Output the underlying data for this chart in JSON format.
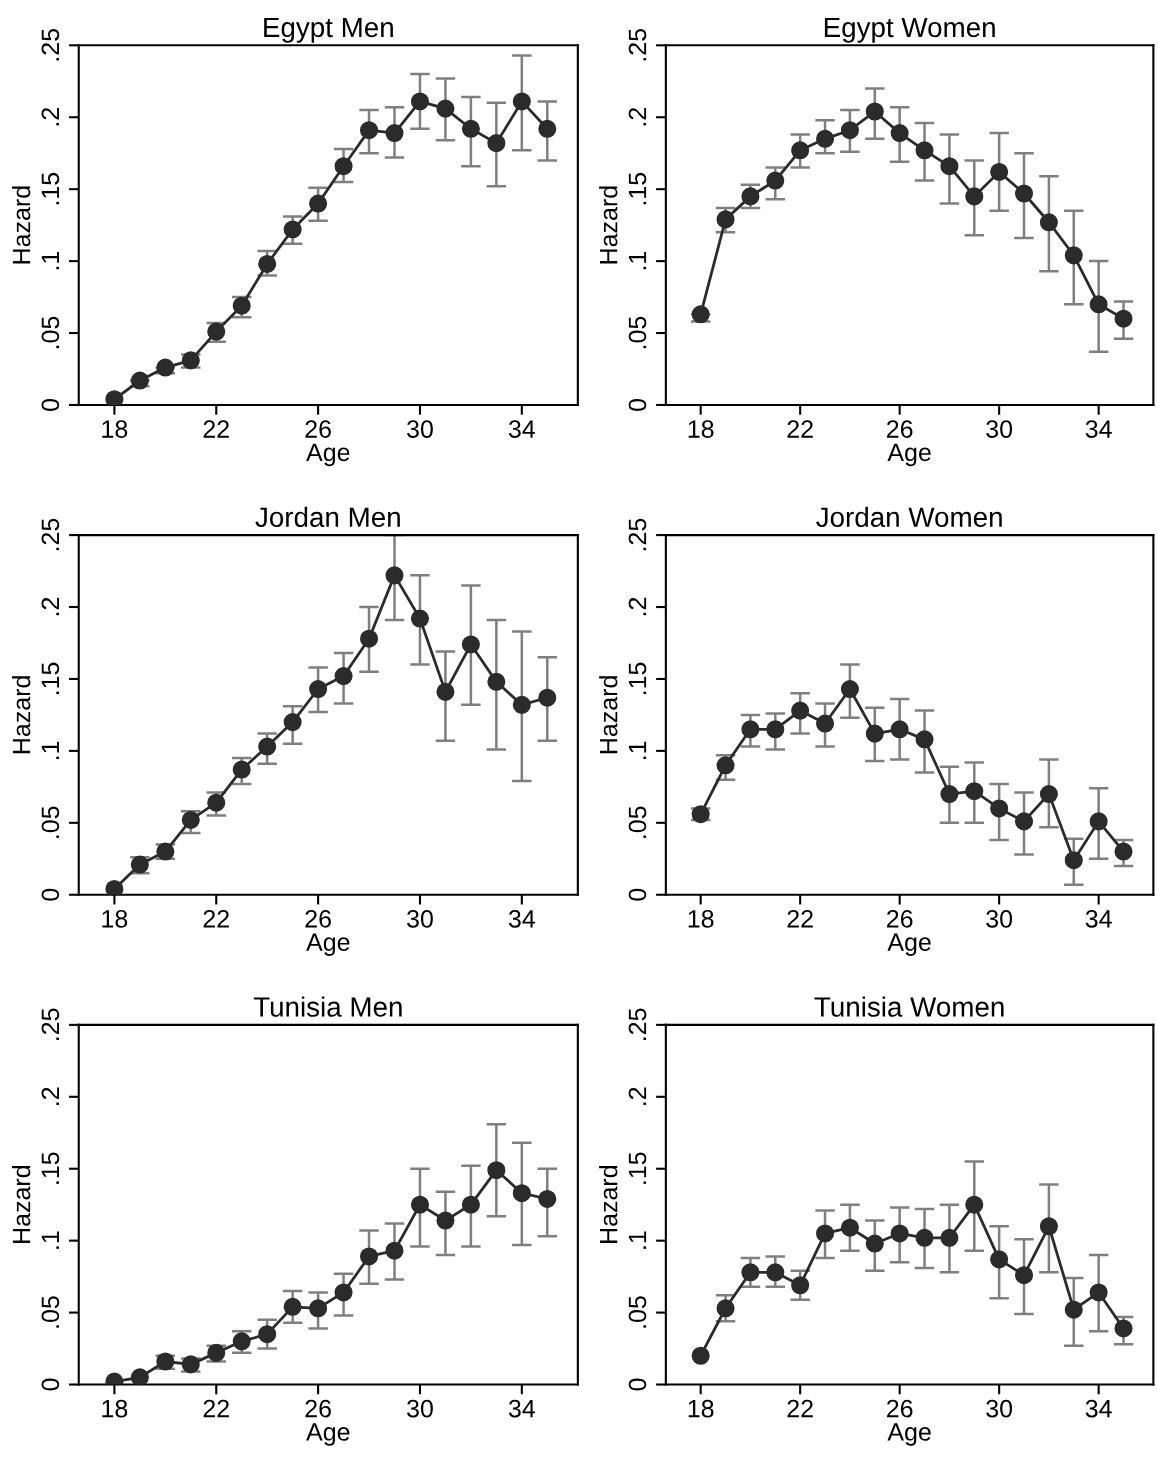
{
  "chart_data": [
    {
      "type": "line",
      "title": "Egypt Men",
      "xlabel": "Age",
      "ylabel": "Hazard",
      "marker": "circle",
      "line_style": "solid",
      "grid": false,
      "x": [
        18,
        19,
        20,
        21,
        22,
        23,
        24,
        25,
        26,
        27,
        28,
        29,
        30,
        31,
        32,
        33,
        34,
        35
      ],
      "xlim": [
        16.6,
        36.2
      ],
      "xticks": [
        18,
        22,
        26,
        30,
        34
      ],
      "ylim": [
        0,
        0.25
      ],
      "yticks": [
        {
          "value": 0,
          "label": "0"
        },
        {
          "value": 0.05,
          "label": ".05"
        },
        {
          "value": 0.1,
          "label": ".1"
        },
        {
          "value": 0.15,
          "label": ".15"
        },
        {
          "value": 0.2,
          "label": ".2"
        },
        {
          "value": 0.25,
          "label": ".25"
        }
      ],
      "series": [
        {
          "color": "#2b2b2b",
          "values": [
            0.004,
            0.017,
            0.026,
            0.031,
            0.051,
            0.069,
            0.098,
            0.122,
            0.14,
            0.166,
            0.191,
            0.189,
            0.211,
            0.206,
            0.192,
            0.182,
            0.211,
            0.192
          ],
          "errors": [
            null,
            [
              0.013,
              0.017
            ],
            [
              0.022,
              0.026
            ],
            [
              0.026,
              0.035
            ],
            [
              0.044,
              0.057
            ],
            [
              0.061,
              0.075
            ],
            [
              0.09,
              0.107
            ],
            [
              0.112,
              0.131
            ],
            [
              0.128,
              0.151
            ],
            [
              0.155,
              0.178
            ],
            [
              0.175,
              0.205
            ],
            [
              0.172,
              0.207
            ],
            [
              0.192,
              0.23
            ],
            [
              0.184,
              0.227
            ],
            [
              0.166,
              0.214
            ],
            [
              0.152,
              0.21
            ],
            [
              0.177,
              0.243
            ],
            [
              0.17,
              0.211
            ]
          ]
        }
      ]
    },
    {
      "type": "line",
      "title": "Egypt Women",
      "xlabel": "Age",
      "ylabel": "Hazard",
      "marker": "circle",
      "line_style": "solid",
      "grid": false,
      "x": [
        18,
        19,
        20,
        21,
        22,
        23,
        24,
        25,
        26,
        27,
        28,
        29,
        30,
        31,
        32,
        33,
        34,
        35
      ],
      "xlim": [
        16.6,
        36.2
      ],
      "xticks": [
        18,
        22,
        26,
        30,
        34
      ],
      "ylim": [
        0,
        0.25
      ],
      "yticks": [
        {
          "value": 0,
          "label": "0"
        },
        {
          "value": 0.05,
          "label": ".05"
        },
        {
          "value": 0.1,
          "label": ".1"
        },
        {
          "value": 0.15,
          "label": ".15"
        },
        {
          "value": 0.2,
          "label": ".2"
        },
        {
          "value": 0.25,
          "label": ".25"
        }
      ],
      "series": [
        {
          "color": "#2b2b2b",
          "values": [
            0.063,
            0.129,
            0.145,
            0.156,
            0.177,
            0.185,
            0.191,
            0.204,
            0.189,
            0.177,
            0.166,
            0.145,
            0.162,
            0.147,
            0.127,
            0.104,
            0.07,
            0.06
          ],
          "errors": [
            [
              0.058,
              0.063
            ],
            [
              0.12,
              0.137
            ],
            [
              0.137,
              0.153
            ],
            [
              0.143,
              0.165
            ],
            [
              0.165,
              0.188
            ],
            [
              0.175,
              0.198
            ],
            [
              0.176,
              0.205
            ],
            [
              0.185,
              0.22
            ],
            [
              0.169,
              0.207
            ],
            [
              0.156,
              0.196
            ],
            [
              0.14,
              0.188
            ],
            [
              0.118,
              0.17
            ],
            [
              0.135,
              0.189
            ],
            [
              0.116,
              0.175
            ],
            [
              0.093,
              0.159
            ],
            [
              0.07,
              0.135
            ],
            [
              0.037,
              0.1
            ],
            [
              0.046,
              0.072
            ]
          ]
        }
      ]
    },
    {
      "type": "line",
      "title": "Jordan Men",
      "xlabel": "Age",
      "ylabel": "Hazard",
      "marker": "circle",
      "line_style": "solid",
      "grid": false,
      "x": [
        18,
        19,
        20,
        21,
        22,
        23,
        24,
        25,
        26,
        27,
        28,
        29,
        30,
        31,
        32,
        33,
        34,
        35
      ],
      "xlim": [
        16.6,
        36.2
      ],
      "xticks": [
        18,
        22,
        26,
        30,
        34
      ],
      "ylim": [
        0,
        0.25
      ],
      "yticks": [
        {
          "value": 0,
          "label": "0"
        },
        {
          "value": 0.05,
          "label": ".05"
        },
        {
          "value": 0.1,
          "label": ".1"
        },
        {
          "value": 0.15,
          "label": ".15"
        },
        {
          "value": 0.2,
          "label": ".2"
        },
        {
          "value": 0.25,
          "label": ".25"
        }
      ],
      "series": [
        {
          "color": "#2b2b2b",
          "values": [
            0.004,
            0.021,
            0.03,
            0.052,
            0.064,
            0.087,
            0.103,
            0.12,
            0.143,
            0.152,
            0.178,
            0.222,
            0.192,
            0.141,
            0.174,
            0.148,
            0.132,
            0.137
          ],
          "errors": [
            null,
            [
              0.015,
              0.026
            ],
            [
              0.025,
              0.035
            ],
            [
              0.043,
              0.058
            ],
            [
              0.055,
              0.071
            ],
            [
              0.077,
              0.095
            ],
            [
              0.091,
              0.112
            ],
            [
              0.105,
              0.131
            ],
            [
              0.127,
              0.158
            ],
            [
              0.133,
              0.168
            ],
            [
              0.155,
              0.2
            ],
            [
              0.191,
              0.25
            ],
            [
              0.16,
              0.222
            ],
            [
              0.107,
              0.169
            ],
            [
              0.132,
              0.215
            ],
            [
              0.101,
              0.191
            ],
            [
              0.079,
              0.183
            ],
            [
              0.107,
              0.165
            ]
          ]
        }
      ]
    },
    {
      "type": "line",
      "title": "Jordan Women",
      "xlabel": "Age",
      "ylabel": "Hazard",
      "marker": "circle",
      "line_style": "solid",
      "grid": false,
      "x": [
        18,
        19,
        20,
        21,
        22,
        23,
        24,
        25,
        26,
        27,
        28,
        29,
        30,
        31,
        32,
        33,
        34,
        35
      ],
      "xlim": [
        16.6,
        36.2
      ],
      "xticks": [
        18,
        22,
        26,
        30,
        34
      ],
      "ylim": [
        0,
        0.25
      ],
      "yticks": [
        {
          "value": 0,
          "label": "0"
        },
        {
          "value": 0.05,
          "label": ".05"
        },
        {
          "value": 0.1,
          "label": ".1"
        },
        {
          "value": 0.15,
          "label": ".15"
        },
        {
          "value": 0.2,
          "label": ".2"
        },
        {
          "value": 0.25,
          "label": ".25"
        }
      ],
      "series": [
        {
          "color": "#2b2b2b",
          "values": [
            0.056,
            0.09,
            0.115,
            0.115,
            0.128,
            0.119,
            0.143,
            0.112,
            0.115,
            0.108,
            0.07,
            0.072,
            0.06,
            0.051,
            0.07,
            0.024,
            0.051,
            0.03
          ],
          "errors": [
            [
              0.052,
              0.06
            ],
            [
              0.08,
              0.097
            ],
            [
              0.103,
              0.125
            ],
            [
              0.101,
              0.126
            ],
            [
              0.112,
              0.14
            ],
            [
              0.103,
              0.133
            ],
            [
              0.123,
              0.16
            ],
            [
              0.093,
              0.13
            ],
            [
              0.094,
              0.136
            ],
            [
              0.085,
              0.128
            ],
            [
              0.05,
              0.089
            ],
            [
              0.05,
              0.092
            ],
            [
              0.038,
              0.077
            ],
            [
              0.028,
              0.071
            ],
            [
              0.047,
              0.094
            ],
            [
              0.007,
              0.039
            ],
            [
              0.025,
              0.074
            ],
            [
              0.02,
              0.038
            ]
          ]
        }
      ]
    },
    {
      "type": "line",
      "title": "Tunisia Men",
      "xlabel": "Age",
      "ylabel": "Hazard",
      "marker": "circle",
      "line_style": "solid",
      "grid": false,
      "x": [
        18,
        19,
        20,
        21,
        22,
        23,
        24,
        25,
        26,
        27,
        28,
        29,
        30,
        31,
        32,
        33,
        34,
        35
      ],
      "xlim": [
        16.6,
        36.2
      ],
      "xticks": [
        18,
        22,
        26,
        30,
        34
      ],
      "ylim": [
        0,
        0.25
      ],
      "yticks": [
        {
          "value": 0,
          "label": "0"
        },
        {
          "value": 0.05,
          "label": ".05"
        },
        {
          "value": 0.1,
          "label": ".1"
        },
        {
          "value": 0.15,
          "label": ".15"
        },
        {
          "value": 0.2,
          "label": ".2"
        },
        {
          "value": 0.25,
          "label": ".25"
        }
      ],
      "series": [
        {
          "color": "#2b2b2b",
          "values": [
            0.002,
            0.005,
            0.016,
            0.014,
            0.022,
            0.03,
            0.035,
            0.054,
            0.053,
            0.064,
            0.089,
            0.093,
            0.125,
            0.114,
            0.125,
            0.149,
            0.133,
            0.129
          ],
          "errors": [
            null,
            null,
            [
              0.011,
              0.02
            ],
            [
              0.009,
              0.018
            ],
            [
              0.016,
              0.027
            ],
            [
              0.022,
              0.037
            ],
            [
              0.025,
              0.045
            ],
            [
              0.043,
              0.065
            ],
            [
              0.039,
              0.064
            ],
            [
              0.048,
              0.077
            ],
            [
              0.07,
              0.107
            ],
            [
              0.073,
              0.112
            ],
            [
              0.096,
              0.15
            ],
            [
              0.09,
              0.134
            ],
            [
              0.096,
              0.152
            ],
            [
              0.117,
              0.181
            ],
            [
              0.097,
              0.168
            ],
            [
              0.103,
              0.15
            ]
          ]
        }
      ]
    },
    {
      "type": "line",
      "title": "Tunisia Women",
      "xlabel": "Age",
      "ylabel": "Hazard",
      "marker": "circle",
      "line_style": "solid",
      "grid": false,
      "x": [
        18,
        19,
        20,
        21,
        22,
        23,
        24,
        25,
        26,
        27,
        28,
        29,
        30,
        31,
        32,
        33,
        34,
        35
      ],
      "xlim": [
        16.6,
        36.2
      ],
      "xticks": [
        18,
        22,
        26,
        30,
        34
      ],
      "ylim": [
        0,
        0.25
      ],
      "yticks": [
        {
          "value": 0,
          "label": "0"
        },
        {
          "value": 0.05,
          "label": ".05"
        },
        {
          "value": 0.1,
          "label": ".1"
        },
        {
          "value": 0.15,
          "label": ".15"
        },
        {
          "value": 0.2,
          "label": ".2"
        },
        {
          "value": 0.25,
          "label": ".25"
        }
      ],
      "series": [
        {
          "color": "#2b2b2b",
          "values": [
            0.02,
            0.053,
            0.078,
            0.078,
            0.069,
            0.105,
            0.109,
            0.098,
            0.105,
            0.102,
            0.102,
            0.125,
            0.087,
            0.076,
            0.11,
            0.052,
            0.064,
            0.039
          ],
          "errors": [
            null,
            [
              0.044,
              0.062
            ],
            [
              0.068,
              0.088
            ],
            [
              0.068,
              0.089
            ],
            [
              0.059,
              0.079
            ],
            [
              0.088,
              0.121
            ],
            [
              0.093,
              0.125
            ],
            [
              0.079,
              0.114
            ],
            [
              0.085,
              0.123
            ],
            [
              0.081,
              0.122
            ],
            [
              0.078,
              0.125
            ],
            [
              0.093,
              0.155
            ],
            [
              0.06,
              0.11
            ],
            [
              0.049,
              0.101
            ],
            [
              0.078,
              0.139
            ],
            [
              0.027,
              0.074
            ],
            [
              0.037,
              0.09
            ],
            [
              0.028,
              0.047
            ]
          ]
        }
      ]
    }
  ]
}
